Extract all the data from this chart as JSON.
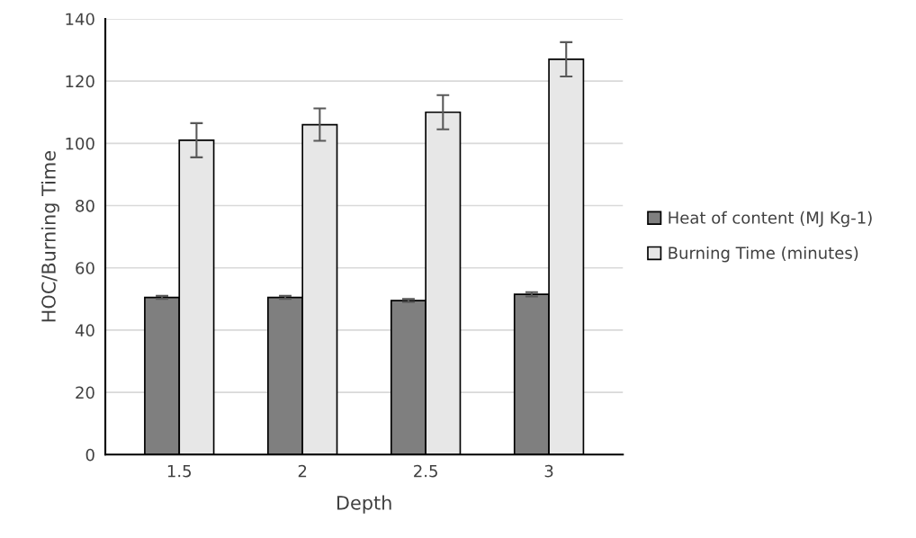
{
  "chart_data": {
    "type": "bar",
    "xlabel": "Depth",
    "ylabel": "HOC/Burning Time",
    "categories": [
      "1.5",
      "2",
      "2.5",
      "3"
    ],
    "series": [
      {
        "name": "Heat of content (MJ Kg-1)",
        "color": "#7f7f7f",
        "values": [
          50.5,
          50.5,
          49.5,
          51.5
        ],
        "errors": [
          0.5,
          0.5,
          0.5,
          0.7
        ]
      },
      {
        "name": "Burning Time (minutes)",
        "color": "#e7e7e7",
        "values": [
          101,
          106,
          110,
          127
        ],
        "errors": [
          5.5,
          5.2,
          5.5,
          5.5
        ]
      }
    ],
    "ylim": [
      0,
      140
    ],
    "yticks": [
      0,
      20,
      40,
      60,
      80,
      100,
      120,
      140
    ],
    "grid": "y",
    "legend": "right"
  }
}
